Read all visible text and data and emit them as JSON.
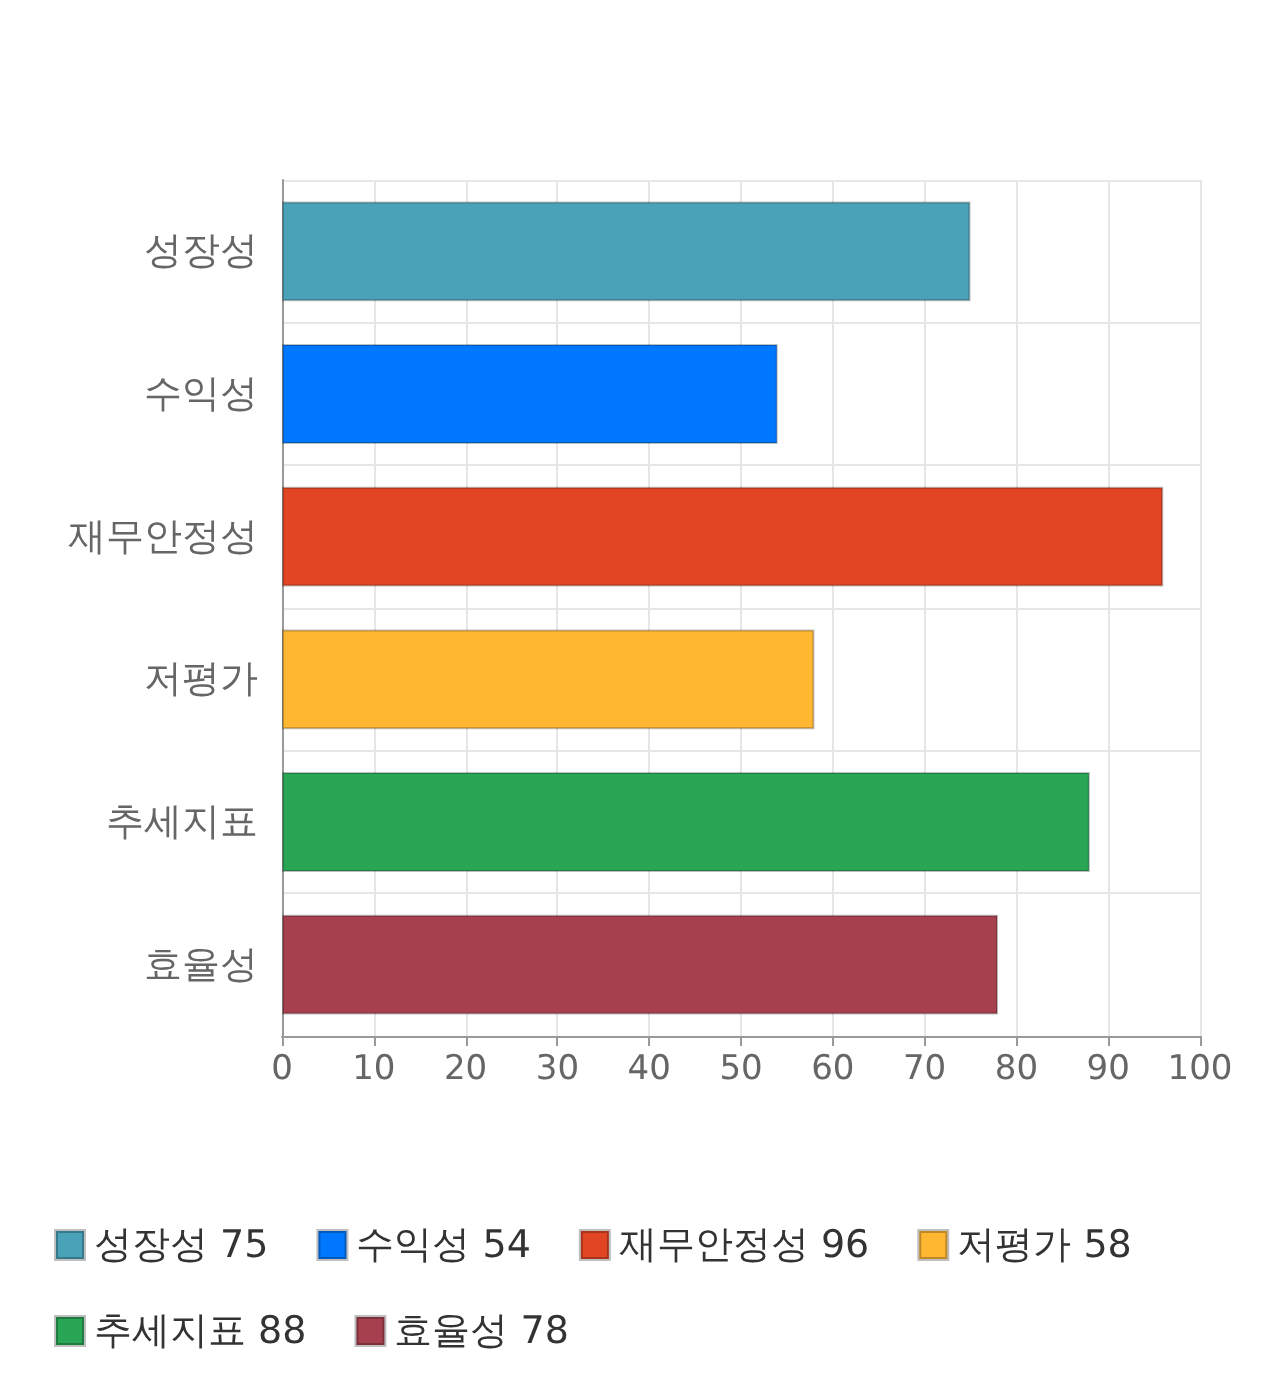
{
  "chart_data": {
    "type": "bar",
    "orientation": "horizontal",
    "stacked": true,
    "categories": [
      "성장성",
      "수익성",
      "재무안정성",
      "저평가",
      "추세지표",
      "효율성"
    ],
    "series": [
      {
        "name": "성장성 75",
        "color": "#4aa2b9",
        "values": [
          75,
          null,
          null,
          null,
          null,
          null
        ]
      },
      {
        "name": "수익성 54",
        "color": "#0077ff",
        "values": [
          null,
          54,
          null,
          null,
          null,
          null
        ]
      },
      {
        "name": "재무안정성 96",
        "color": "#e24524",
        "values": [
          null,
          null,
          96,
          null,
          null,
          null
        ]
      },
      {
        "name": "저평가 58",
        "color": "#ffb732",
        "values": [
          null,
          null,
          null,
          58,
          null,
          null
        ]
      },
      {
        "name": "추세지표 88",
        "color": "#28a656",
        "values": [
          null,
          null,
          null,
          null,
          88,
          null
        ]
      },
      {
        "name": "효율성 78",
        "color": "#a6404f",
        "values": [
          null,
          null,
          null,
          null,
          null,
          78
        ]
      }
    ],
    "xlim": [
      0,
      100
    ],
    "xticks": [
      0,
      10,
      20,
      30,
      40,
      50,
      60,
      70,
      80,
      90,
      100
    ],
    "grid": true,
    "legend": "bottom"
  }
}
